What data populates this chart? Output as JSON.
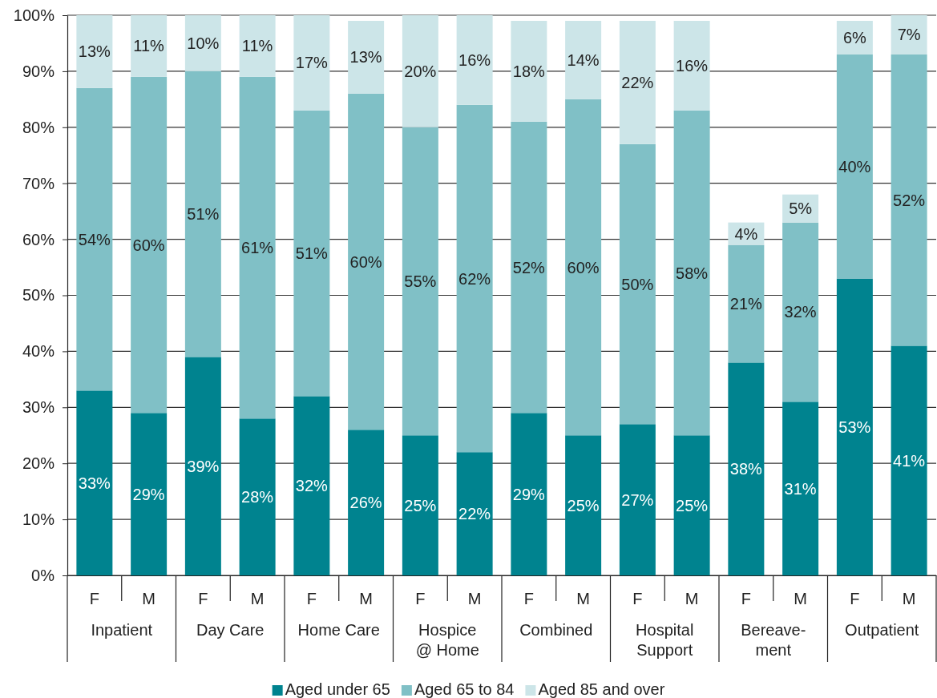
{
  "chart_data": {
    "type": "bar",
    "stacked": true,
    "categories": [
      "F",
      "M",
      "F",
      "M",
      "F",
      "M",
      "F",
      "M",
      "F",
      "M",
      "F",
      "M",
      "F",
      "M",
      "F",
      "M"
    ],
    "annotations": [
      "Inpatient",
      "Day Care",
      "Home Care",
      "Hospice\n@ Home",
      "Combined",
      "Hospital\nSupport",
      "Bereave-\nment",
      "Outpatient"
    ],
    "series": [
      {
        "name": "Aged under 65",
        "color": "#00838f",
        "values": [
          33,
          29,
          39,
          28,
          32,
          26,
          25,
          22,
          29,
          25,
          27,
          25,
          38,
          31,
          53,
          41
        ],
        "value_labels": [
          "33%",
          "29%",
          "39%",
          "28%",
          "32%",
          "26%",
          "25%",
          "22%",
          "29%",
          "25%",
          "27%",
          "25%",
          "38%",
          "31%",
          "53%",
          "41%"
        ]
      },
      {
        "name": "Aged 65 to 84",
        "color": "#80c0c6",
        "values": [
          54,
          60,
          51,
          61,
          51,
          60,
          55,
          62,
          52,
          60,
          50,
          58,
          21,
          32,
          40,
          52
        ],
        "value_labels": [
          "54%",
          "60%",
          "51%",
          "61%",
          "51%",
          "60%",
          "55%",
          "62%",
          "52%",
          "60%",
          "50%",
          "58%",
          "21%",
          "32%",
          "40%",
          "52%"
        ]
      },
      {
        "name": "Aged 85 and over",
        "color": "#cce5e8",
        "values": [
          13,
          11,
          10,
          11,
          17,
          13,
          20,
          16,
          18,
          14,
          22,
          16,
          4,
          5,
          6,
          7
        ],
        "value_labels": [
          "13%",
          "11%",
          "10%",
          "11%",
          "17%",
          "13%",
          "20%",
          "16%",
          "18%",
          "14%",
          "22%",
          "16%",
          "4%",
          "5%",
          "6%",
          "7%"
        ]
      }
    ],
    "ylim": [
      0,
      100
    ],
    "yticks": [
      {
        "value": 0,
        "label": "0%"
      },
      {
        "value": 10,
        "label": "10%"
      },
      {
        "value": 20,
        "label": "20%"
      },
      {
        "value": 30,
        "label": "30%"
      },
      {
        "value": 40,
        "label": "40%"
      },
      {
        "value": 50,
        "label": "50%"
      },
      {
        "value": 60,
        "label": "60%"
      },
      {
        "value": 70,
        "label": "70%"
      },
      {
        "value": 80,
        "label": "80%"
      },
      {
        "value": 90,
        "label": "90%"
      },
      {
        "value": 100,
        "label": "100%"
      }
    ],
    "grid": "y",
    "legend": "bottom"
  }
}
